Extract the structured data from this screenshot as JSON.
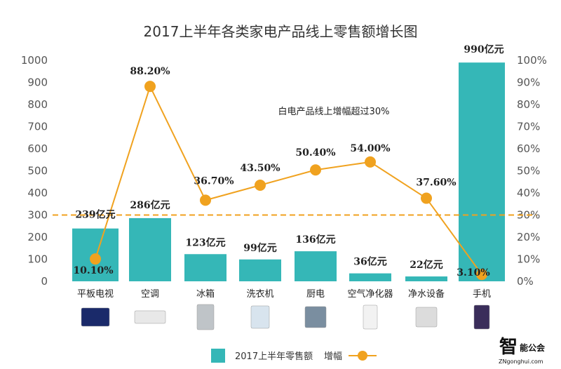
{
  "chart_data": {
    "type": "bar+line",
    "title": "2017上半年各类家电产品线上零售额增长图",
    "categories": [
      "平板电视",
      "空调",
      "冰箱",
      "洗衣机",
      "厨电",
      "空气净化器",
      "净水设备",
      "手机"
    ],
    "series": [
      {
        "name": "2017上半年零售额",
        "type": "bar",
        "axis": "left",
        "values": [
          239,
          286,
          123,
          99,
          136,
          36,
          22,
          990
        ],
        "labels": [
          "239亿元",
          "286亿元",
          "123亿元",
          "99亿元",
          "136亿元",
          "36亿元",
          "22亿元",
          "990亿元"
        ],
        "color": "#35b7b7"
      },
      {
        "name": "增幅",
        "type": "line",
        "axis": "right",
        "values": [
          10.1,
          88.2,
          36.7,
          43.5,
          50.4,
          54.0,
          37.6,
          3.1
        ],
        "labels": [
          "10.10%",
          "88.20%",
          "36.70%",
          "43.50%",
          "50.40%",
          "54.00%",
          "37.60%",
          "3.10%"
        ],
        "color": "#f0a21f"
      }
    ],
    "left_axis": {
      "ylim": [
        0,
        1000
      ],
      "ticks": [
        "0",
        "100",
        "200",
        "300",
        "400",
        "500",
        "600",
        "700",
        "800",
        "900",
        "1000"
      ]
    },
    "right_axis": {
      "ylim": [
        0,
        100
      ],
      "ticks": [
        "0%",
        "10%",
        "20%",
        "30%",
        "40%",
        "50%",
        "60%",
        "70%",
        "80%",
        "90%",
        "100%"
      ]
    },
    "reference_line": {
      "value": 30,
      "axis": "right",
      "style": "dashed",
      "color": "#f0a21f"
    },
    "annotation": "白电产品线上增幅超过30%",
    "grid": false,
    "legend": "bottom",
    "category_icons": [
      "tv-icon",
      "air-conditioner-icon",
      "fridge-icon",
      "washing-machine-icon",
      "kitchen-appliance-icon",
      "air-purifier-icon",
      "water-purifier-icon",
      "phone-icon"
    ]
  },
  "watermark": {
    "logo_text": "智能公会",
    "url": "ZNgonghui.com"
  }
}
